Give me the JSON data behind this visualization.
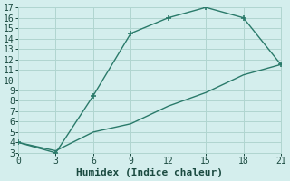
{
  "xlabel": "Humidex (Indice chaleur)",
  "x_upper": [
    0,
    3,
    6,
    9,
    12,
    15,
    18,
    21
  ],
  "y_upper": [
    4,
    3,
    8.5,
    14.5,
    16,
    17,
    16,
    11.5
  ],
  "x_lower": [
    0,
    3,
    6,
    9,
    12,
    15,
    18,
    21
  ],
  "y_lower": [
    4,
    3.2,
    5.0,
    5.8,
    7.5,
    8.8,
    10.5,
    11.5
  ],
  "line_color": "#2a7a6a",
  "marker": "+",
  "bg_color": "#d4eeed",
  "grid_color": "#b0d5d0",
  "tick_color": "#1a4a40",
  "label_color": "#1a4a40",
  "xlim": [
    0,
    21
  ],
  "ylim": [
    3,
    17
  ],
  "xticks": [
    0,
    3,
    6,
    9,
    12,
    15,
    18,
    21
  ],
  "yticks": [
    3,
    4,
    5,
    6,
    7,
    8,
    9,
    10,
    11,
    12,
    13,
    14,
    15,
    16,
    17
  ],
  "fontsize": 7,
  "xlabel_fontsize": 8
}
